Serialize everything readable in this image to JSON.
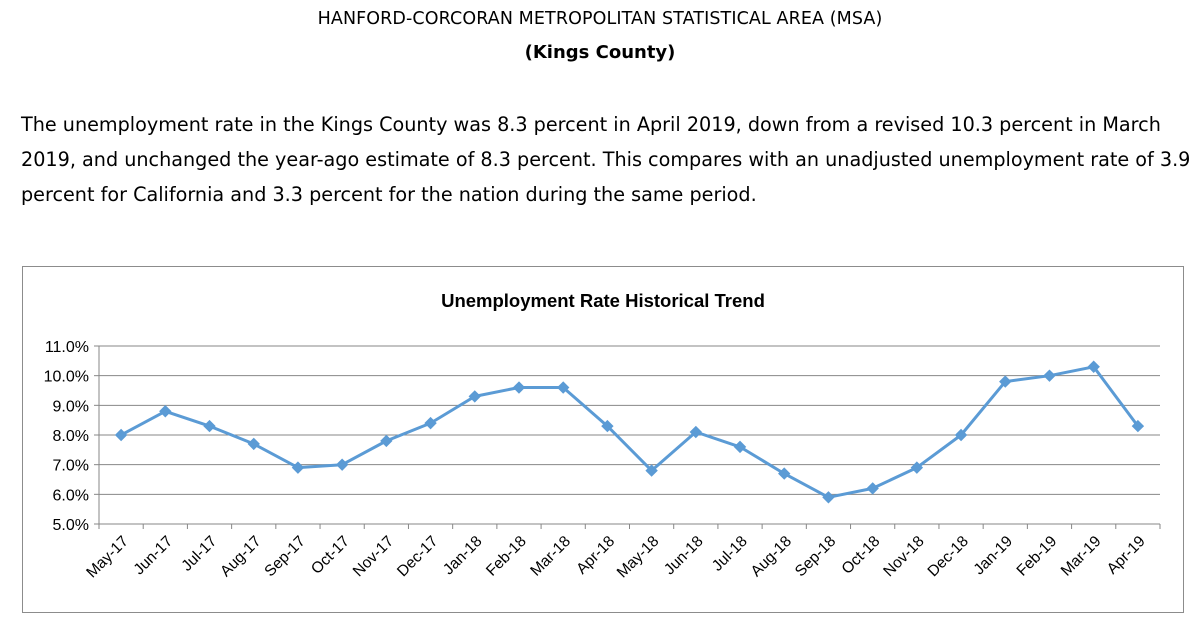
{
  "header": {
    "title": "HANFORD-CORCORAN METROPOLITAN STATISTICAL AREA (MSA)",
    "subtitle": "(Kings County)"
  },
  "summary": {
    "paragraph": "The unemployment rate in the Kings County was 8.3 percent in April 2019, down from a revised 10.3 percent in March 2019, and unchanged the year-ago estimate of 8.3 percent.  This compares with an unadjusted unemployment rate of 3.9 percent for California and 3.3 percent for the nation during the same period."
  },
  "chart_data": {
    "type": "line",
    "title": "Unemployment Rate Historical Trend",
    "xlabel": "",
    "ylabel": "",
    "categories": [
      "May-17",
      "Jun-17",
      "Jul-17",
      "Aug-17",
      "Sep-17",
      "Oct-17",
      "Nov-17",
      "Dec-17",
      "Jan-18",
      "Feb-18",
      "Mar-18",
      "Apr-18",
      "May-18",
      "Jun-18",
      "Jul-18",
      "Aug-18",
      "Sep-18",
      "Oct-18",
      "Nov-18",
      "Dec-18",
      "Jan-19",
      "Feb-19",
      "Mar-19",
      "Apr-19"
    ],
    "series": [
      {
        "values": [
          8.0,
          8.8,
          8.3,
          7.7,
          6.9,
          7.0,
          7.8,
          8.4,
          9.3,
          9.6,
          9.6,
          8.3,
          6.8,
          8.1,
          7.6,
          6.7,
          5.9,
          6.2,
          6.9,
          8.0,
          9.8,
          10.0,
          10.3,
          8.3
        ]
      }
    ],
    "ylim": [
      5.0,
      11.0
    ],
    "yticks": [
      "5.0%",
      "6.0%",
      "7.0%",
      "8.0%",
      "9.0%",
      "10.0%",
      "11.0%"
    ],
    "grid": true,
    "legend": "none",
    "marker": "diamond",
    "line_color": "#5b9bd5",
    "grid_color": "#878787"
  }
}
